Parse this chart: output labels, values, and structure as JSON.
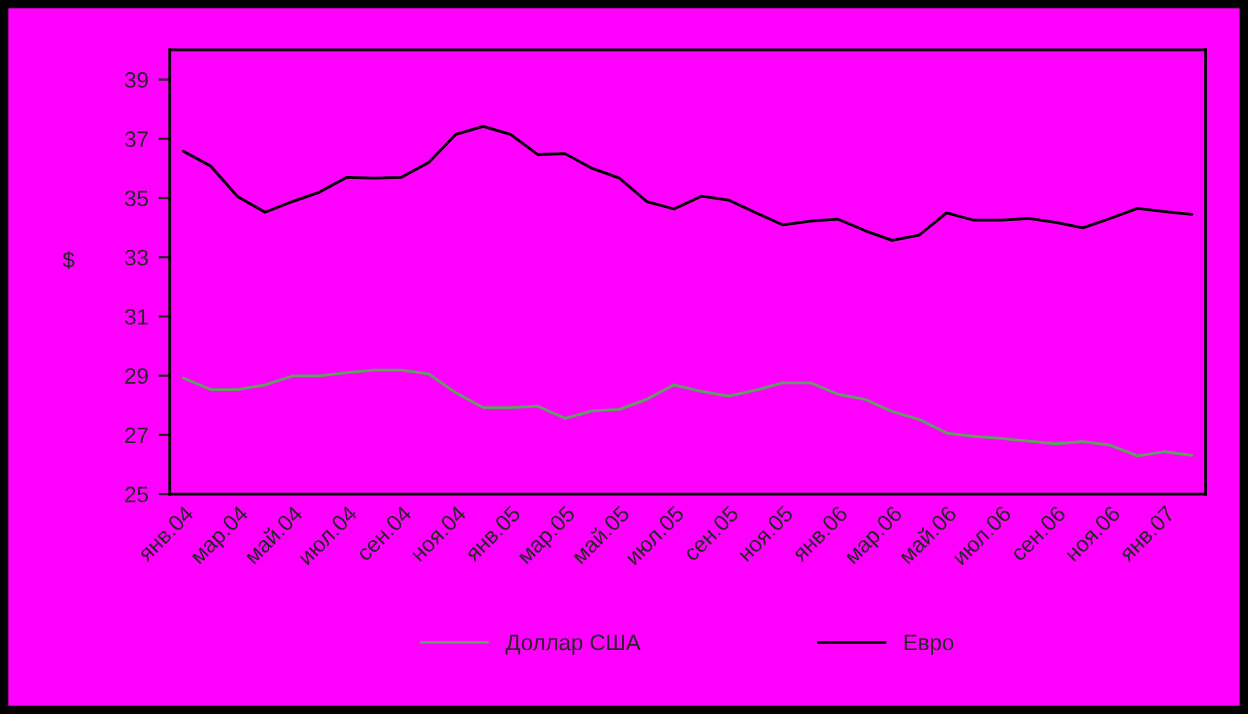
{
  "chart_data": {
    "type": "line",
    "ylabel": "$",
    "categories": [
      "янв.04",
      null,
      "мар.04",
      null,
      "май.04",
      null,
      "июл.04",
      null,
      "сен.04",
      null,
      "ноя.04",
      null,
      "янв.05",
      null,
      "мар.05",
      null,
      "май.05",
      null,
      "июл.05",
      null,
      "сен.05",
      null,
      "ноя.05",
      null,
      "янв.06",
      null,
      "мар.06",
      null,
      "май.06",
      null,
      "июл.06",
      null,
      "сен.06",
      null,
      "ноя.06",
      null,
      "янв.07",
      null
    ],
    "series": [
      {
        "name": "Доллар США",
        "color": "#5f9f5f",
        "values": [
          28.92,
          28.53,
          28.53,
          28.69,
          28.99,
          28.99,
          29.1,
          29.19,
          29.19,
          29.06,
          28.42,
          27.92,
          27.92,
          27.97,
          27.56,
          27.81,
          27.86,
          28.2,
          28.69,
          28.47,
          28.31,
          28.51,
          28.76,
          28.76,
          28.38,
          28.2,
          27.79,
          27.52,
          27.06,
          26.95,
          26.88,
          26.79,
          26.7,
          26.77,
          26.65,
          26.29,
          26.43,
          26.31
        ]
      },
      {
        "name": "Евро",
        "color": "#000000",
        "values": [
          36.58,
          36.08,
          35.04,
          34.52,
          34.88,
          35.2,
          35.7,
          35.67,
          35.7,
          36.2,
          37.15,
          37.42,
          37.15,
          36.47,
          36.5,
          36.0,
          35.67,
          34.88,
          34.63,
          35.06,
          34.93,
          34.5,
          34.09,
          34.22,
          34.29,
          33.9,
          33.57,
          33.75,
          34.5,
          34.25,
          34.25,
          34.31,
          34.18,
          33.99,
          34.31,
          34.65,
          34.54,
          34.45
        ]
      }
    ],
    "ylim": [
      25,
      40
    ],
    "yticks": [
      25,
      27,
      29,
      31,
      33,
      35,
      37,
      39
    ],
    "grid": false,
    "legend": "bottom",
    "line_style": "solid",
    "marker": "none"
  }
}
